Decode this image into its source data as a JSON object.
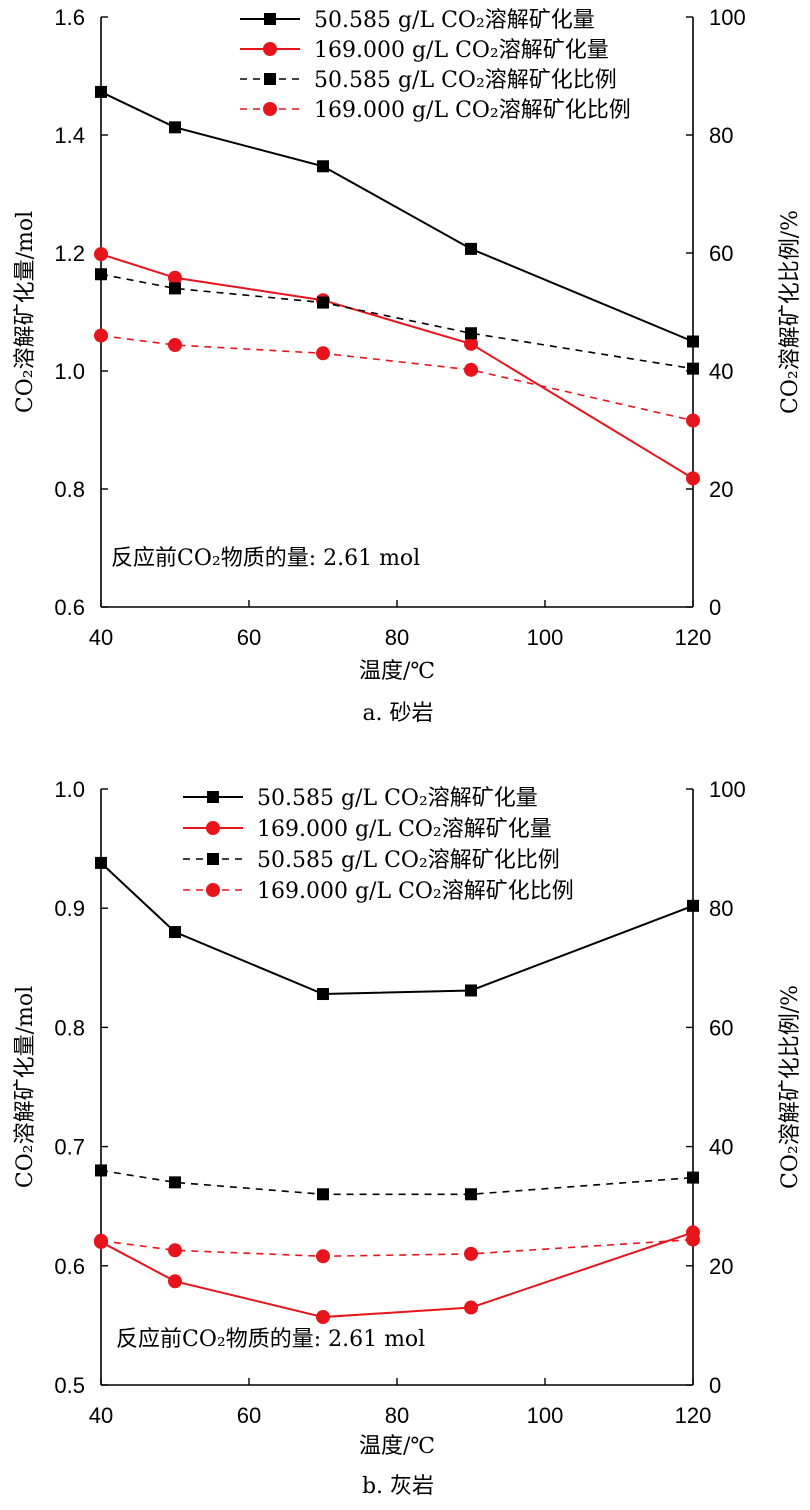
{
  "chart_data": [
    {
      "type": "line",
      "caption": "a. 砂岩",
      "xlabel": "温度/℃",
      "ylabel_left": "CO₂溶解矿化量/mol",
      "ylabel_right": "CO₂溶解矿化比例/%",
      "xlim": [
        40,
        120
      ],
      "ylim_left": [
        0.6,
        1.6
      ],
      "ylim_right": [
        0,
        100
      ],
      "x_ticks": [
        40,
        60,
        80,
        100,
        120
      ],
      "y_left_ticks": [
        "0.6",
        "0.8",
        "1.0",
        "1.2",
        "1.4",
        "1.6"
      ],
      "y_right_ticks": [
        "0",
        "20",
        "40",
        "60",
        "80",
        "100"
      ],
      "x": [
        40,
        50,
        70,
        90,
        120
      ],
      "annotation": "反应前CO₂物质的量: 2.61 mol",
      "legend_position": "top-right",
      "series": [
        {
          "name": "50.585 g/L CO₂溶解矿化量",
          "axis": "left",
          "color": "#000000",
          "dashed": false,
          "marker": "square",
          "values": [
            1.473,
            1.413,
            1.347,
            1.207,
            1.05
          ]
        },
        {
          "name": "169.000 g/L CO₂溶解矿化量",
          "axis": "left",
          "color": "#e8141c",
          "dashed": false,
          "marker": "circle",
          "values": [
            1.198,
            1.158,
            1.12,
            1.046,
            0.818
          ]
        },
        {
          "name": "50.585 g/L CO₂溶解矿化比例",
          "axis": "right",
          "color": "#000000",
          "dashed": true,
          "marker": "square",
          "values": [
            56.4,
            54.0,
            51.6,
            46.4,
            40.4
          ]
        },
        {
          "name": "169.000 g/L CO₂溶解矿化比例",
          "axis": "right",
          "color": "#e8141c",
          "dashed": true,
          "marker": "circle",
          "values": [
            46.0,
            44.4,
            43.0,
            40.2,
            31.6
          ]
        }
      ]
    },
    {
      "type": "line",
      "caption": "b. 灰岩",
      "xlabel": "温度/℃",
      "ylabel_left": "CO₂溶解矿化量/mol",
      "ylabel_right": "CO₂溶解矿化比例/%",
      "xlim": [
        40,
        120
      ],
      "ylim_left": [
        0.5,
        1.0
      ],
      "ylim_right": [
        0,
        100
      ],
      "x_ticks": [
        40,
        60,
        80,
        100,
        120
      ],
      "y_left_ticks": [
        "0.5",
        "0.6",
        "0.7",
        "0.8",
        "0.9",
        "1.0"
      ],
      "y_right_ticks": [
        "0",
        "20",
        "40",
        "60",
        "80",
        "100"
      ],
      "x": [
        40,
        50,
        70,
        90,
        120
      ],
      "annotation": "反应前CO₂物质的量: 2.61 mol",
      "legend_position": "top-right",
      "series": [
        {
          "name": "50.585 g/L CO₂溶解矿化量",
          "axis": "left",
          "color": "#000000",
          "dashed": false,
          "marker": "square",
          "values": [
            0.938,
            0.88,
            0.828,
            0.831,
            0.902
          ]
        },
        {
          "name": "169.000 g/L CO₂溶解矿化量",
          "axis": "left",
          "color": "#e8141c",
          "dashed": false,
          "marker": "circle",
          "values": [
            0.62,
            0.587,
            0.557,
            0.565,
            0.628
          ]
        },
        {
          "name": "50.585 g/L CO₂溶解矿化比例",
          "axis": "right",
          "color": "#000000",
          "dashed": true,
          "marker": "square",
          "values": [
            36.0,
            34.0,
            32.0,
            32.0,
            34.8
          ]
        },
        {
          "name": "169.000 g/L CO₂溶解矿化比例",
          "axis": "right",
          "color": "#e8141c",
          "dashed": true,
          "marker": "circle",
          "values": [
            24.2,
            22.6,
            21.6,
            22.0,
            24.4
          ]
        }
      ]
    }
  ]
}
